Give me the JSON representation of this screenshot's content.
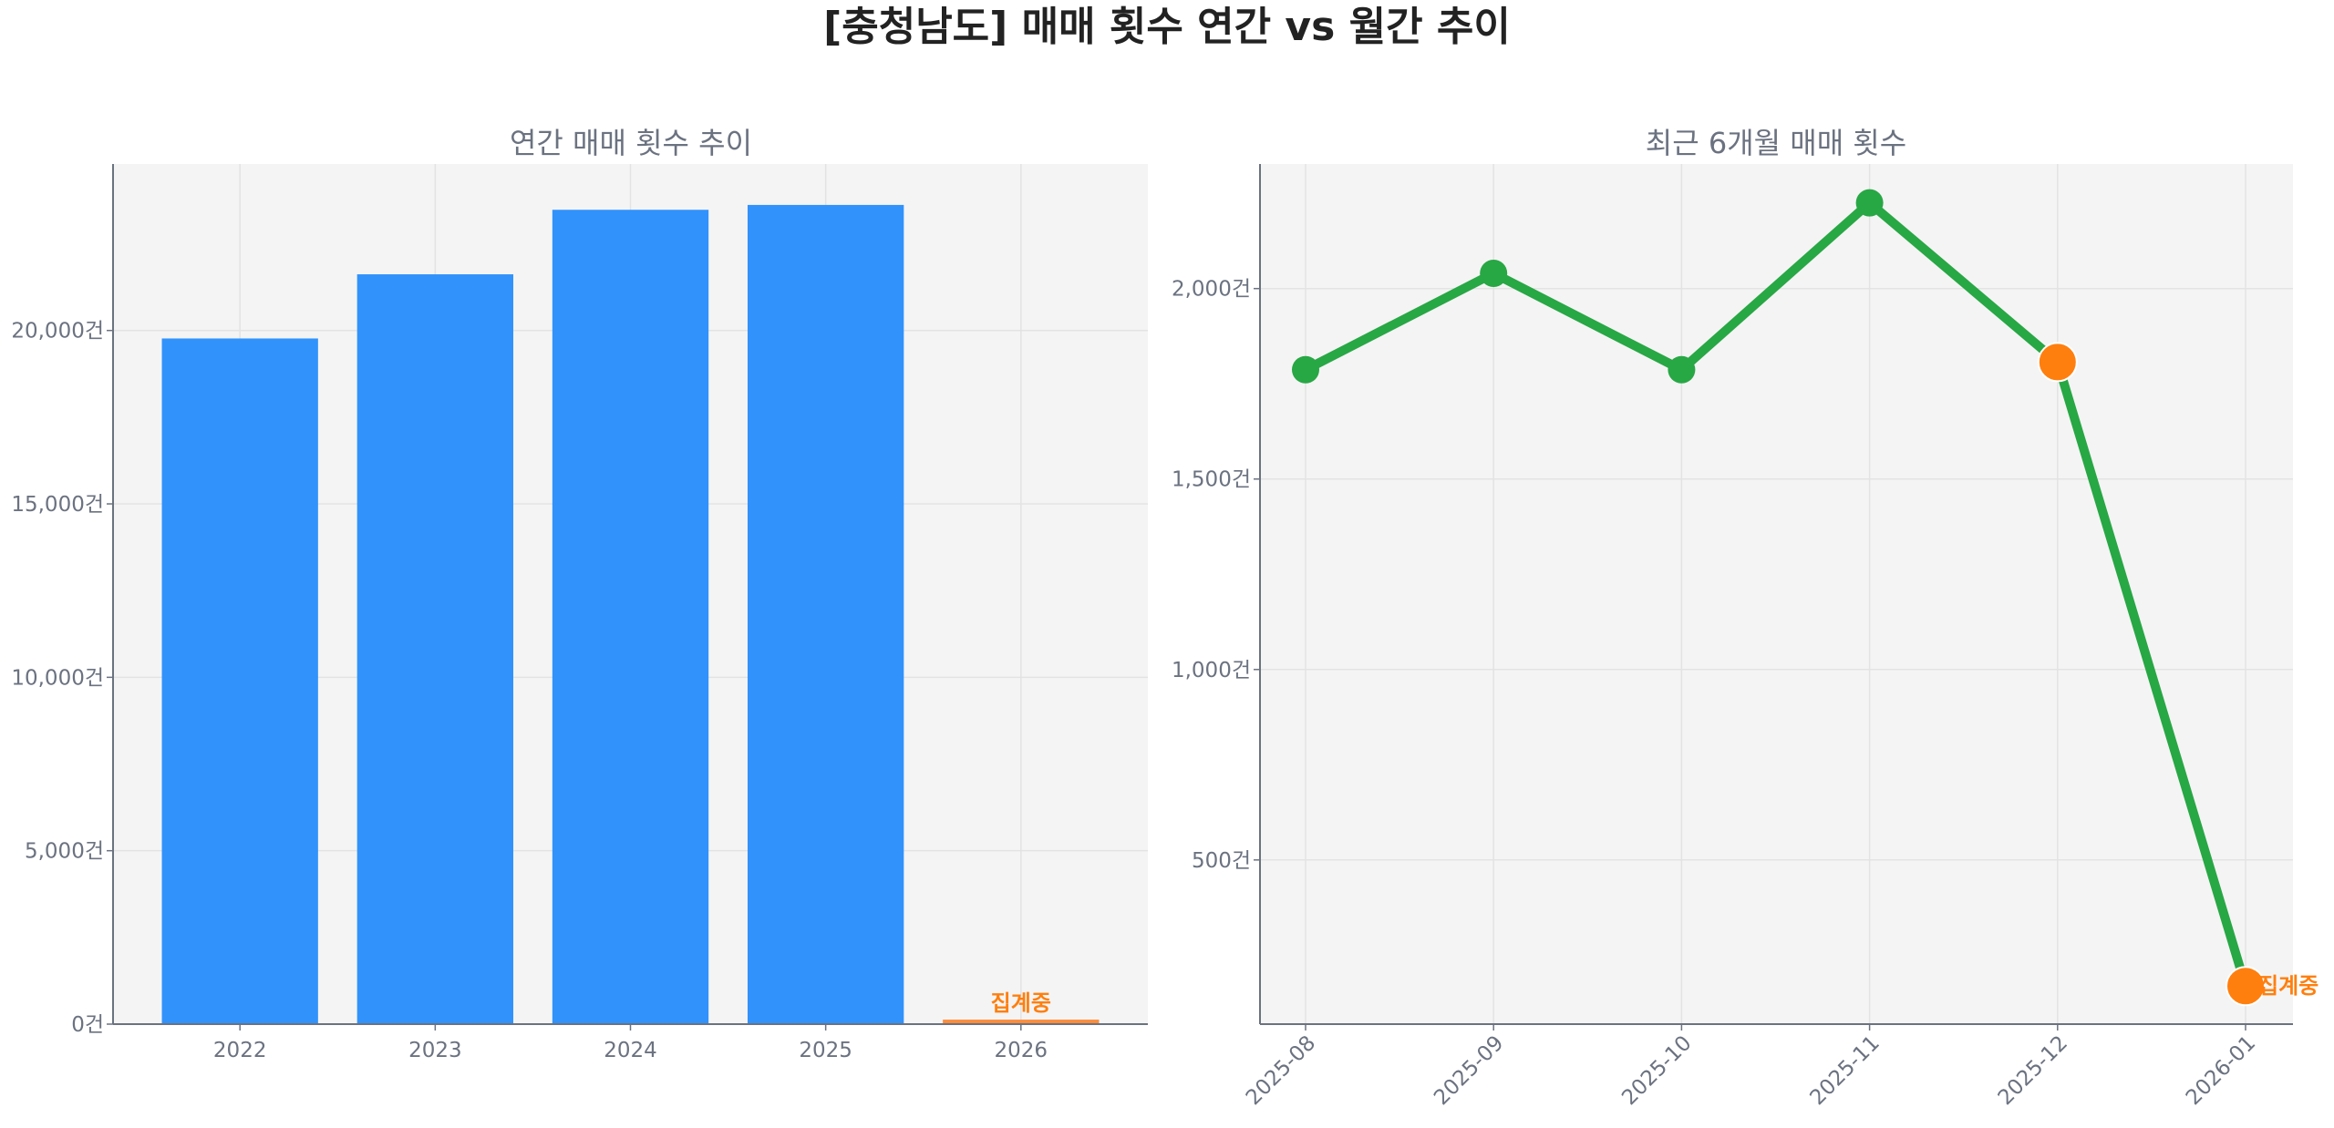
{
  "title": "[충청남도] 매매 횟수 연간 vs 월간 추이",
  "colors": {
    "bar": "#3192fb",
    "partial": "#fd8d3c",
    "line": "#28a745",
    "highlight": "#ff7f0e",
    "plot_bg": "#f4f4f4",
    "grid": "#e3e3e3"
  },
  "chart_data": [
    {
      "type": "bar",
      "title": "연간 매매 횟수 추이",
      "categories": [
        "2022",
        "2023",
        "2024",
        "2025",
        "2026"
      ],
      "values": [
        19770,
        21620,
        23480,
        23620,
        130
      ],
      "ylim": [
        0,
        24800
      ],
      "yticks": [
        0,
        5000,
        10000,
        15000,
        20000
      ],
      "ytick_labels": [
        "0건",
        "5,000건",
        "10,000건",
        "15,000건",
        "20,000건"
      ],
      "grid": true,
      "partial_index": 4,
      "annotation": "집계중"
    },
    {
      "type": "line",
      "title": "최근 6개월 매매 횟수",
      "categories": [
        "2025-08",
        "2025-09",
        "2025-10",
        "2025-11",
        "2025-12",
        "2026-01"
      ],
      "values": [
        1787,
        2040,
        1787,
        2225,
        1807,
        169
      ],
      "ylim": [
        69,
        2327
      ],
      "yticks": [
        500,
        1000,
        1500,
        2000
      ],
      "ytick_labels": [
        "500건",
        "1,000건",
        "1,500건",
        "2,000건"
      ],
      "grid": true,
      "highlight_indices": [
        4,
        5
      ],
      "annotation": "집계중"
    }
  ]
}
